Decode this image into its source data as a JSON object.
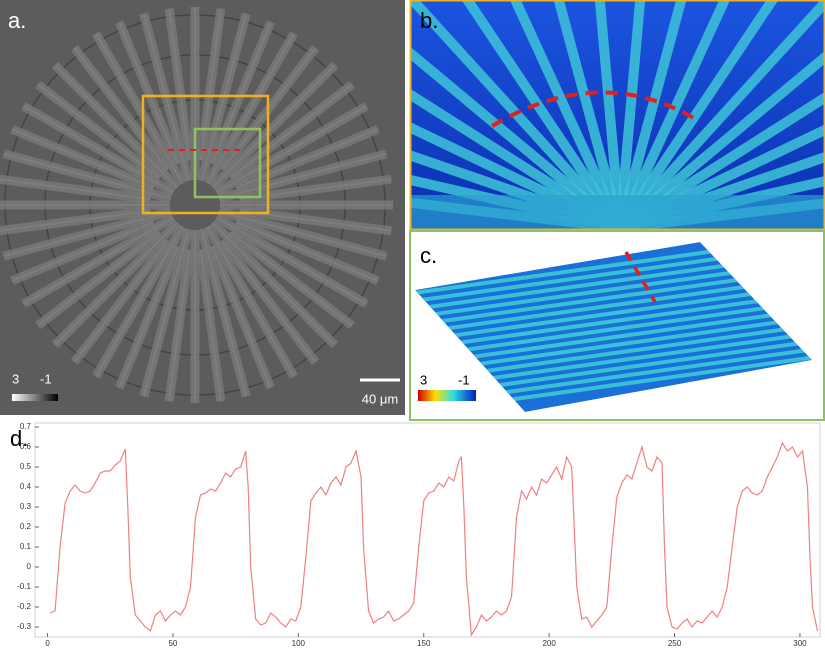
{
  "panels": {
    "a": {
      "label": "a.",
      "scale_max": "3",
      "scale_min": "-1",
      "scale_bar": "40 μm"
    },
    "b": {
      "label": "b."
    },
    "c": {
      "label": "c.",
      "scale_max": "3",
      "scale_min": "-1"
    }
  },
  "chart_data": {
    "type": "line",
    "title": "d.",
    "x": [
      1,
      3,
      5,
      7,
      9,
      11,
      13,
      15,
      17,
      19,
      21,
      23,
      25,
      27,
      29,
      31,
      32,
      33,
      35,
      37,
      39,
      41,
      43,
      45,
      47,
      49,
      51,
      53,
      55,
      57,
      59,
      61,
      63,
      65,
      67,
      69,
      71,
      73,
      75,
      77,
      79,
      80,
      81,
      83,
      85,
      87,
      89,
      91,
      93,
      95,
      97,
      99,
      101,
      103,
      105,
      107,
      109,
      111,
      113,
      115,
      117,
      119,
      121,
      123,
      125,
      126,
      128,
      130,
      132,
      134,
      136,
      138,
      140,
      142,
      144,
      146,
      148,
      150,
      152,
      154,
      156,
      158,
      160,
      162,
      164,
      165,
      166,
      167,
      169,
      171,
      173,
      175,
      177,
      179,
      181,
      183,
      185,
      187,
      189,
      191,
      193,
      195,
      197,
      199,
      201,
      203,
      205,
      207,
      209,
      210,
      211,
      213,
      215,
      217,
      219,
      221,
      223,
      225,
      227,
      229,
      231,
      233,
      235,
      237,
      239,
      241,
      243,
      245,
      246,
      247,
      249,
      251,
      253,
      255,
      257,
      259,
      261,
      263,
      265,
      267,
      269,
      271,
      273,
      275,
      277,
      279,
      281,
      283,
      285,
      287,
      289,
      291,
      293,
      295,
      297,
      299,
      301,
      303,
      304,
      305,
      307
    ],
    "series": [
      {
        "color": "#f08080",
        "values": [
          -0.23,
          -0.22,
          0.1,
          0.32,
          0.38,
          0.41,
          0.38,
          0.37,
          0.38,
          0.42,
          0.47,
          0.48,
          0.48,
          0.51,
          0.53,
          0.59,
          0.3,
          -0.05,
          -0.24,
          -0.27,
          -0.3,
          -0.32,
          -0.24,
          -0.22,
          -0.27,
          -0.24,
          -0.22,
          -0.24,
          -0.2,
          -0.1,
          0.25,
          0.36,
          0.37,
          0.39,
          0.38,
          0.42,
          0.47,
          0.45,
          0.49,
          0.5,
          0.58,
          0.4,
          0.0,
          -0.26,
          -0.29,
          -0.28,
          -0.23,
          -0.25,
          -0.28,
          -0.3,
          -0.26,
          -0.27,
          -0.2,
          0.05,
          0.33,
          0.37,
          0.4,
          0.36,
          0.42,
          0.45,
          0.41,
          0.5,
          0.52,
          0.58,
          0.45,
          0.1,
          -0.22,
          -0.28,
          -0.26,
          -0.25,
          -0.22,
          -0.27,
          -0.26,
          -0.24,
          -0.22,
          -0.18,
          0.1,
          0.33,
          0.37,
          0.38,
          0.42,
          0.4,
          0.45,
          0.43,
          0.53,
          0.55,
          0.3,
          -0.05,
          -0.34,
          -0.3,
          -0.24,
          -0.27,
          -0.25,
          -0.22,
          -0.24,
          -0.22,
          -0.15,
          0.25,
          0.38,
          0.34,
          0.4,
          0.36,
          0.44,
          0.42,
          0.46,
          0.5,
          0.44,
          0.55,
          0.5,
          0.2,
          -0.1,
          -0.26,
          -0.25,
          -0.3,
          -0.27,
          -0.24,
          -0.2,
          0.1,
          0.35,
          0.42,
          0.46,
          0.44,
          0.52,
          0.6,
          0.5,
          0.48,
          0.55,
          0.52,
          0.1,
          -0.2,
          -0.3,
          -0.31,
          -0.28,
          -0.26,
          -0.3,
          -0.27,
          -0.28,
          -0.25,
          -0.22,
          -0.25,
          -0.2,
          -0.1,
          0.1,
          0.3,
          0.38,
          0.4,
          0.37,
          0.36,
          0.38,
          0.45,
          0.5,
          0.55,
          0.62,
          0.58,
          0.6,
          0.55,
          0.58,
          0.4,
          0.05,
          -0.2,
          -0.32
        ]
      }
    ],
    "xlim": [
      -5,
      308
    ],
    "xticks": [
      0,
      50,
      100,
      150,
      200,
      250,
      300
    ],
    "ylim": [
      -0.35,
      0.72
    ],
    "yticks": [
      -0.3,
      -0.2,
      -0.1,
      0,
      0.1,
      0.2,
      0.3,
      0.4,
      0.5,
      0.6,
      0.7
    ]
  }
}
